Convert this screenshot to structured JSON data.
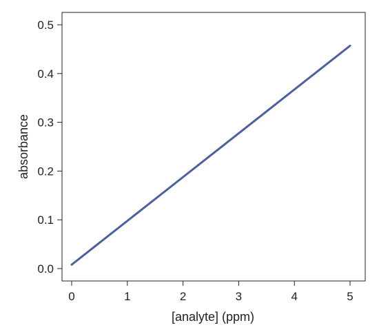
{
  "chart_data": {
    "type": "line",
    "title": "",
    "xlabel": "[analyte] (ppm)",
    "ylabel": "absorbance",
    "xlim": [
      0,
      5
    ],
    "ylim": [
      0,
      0.5
    ],
    "x_ticks": [
      0,
      1,
      2,
      3,
      4,
      5
    ],
    "x_tick_labels": [
      "0",
      "1",
      "2",
      "3",
      "4",
      "5"
    ],
    "y_ticks": [
      0.0,
      0.1,
      0.2,
      0.3,
      0.4,
      0.5
    ],
    "y_tick_labels": [
      "0.0",
      "0.1",
      "0.2",
      "0.3",
      "0.4",
      "0.5"
    ],
    "grid": false,
    "legend": "none",
    "series": [
      {
        "color": "#4c5f9e",
        "x": [
          0,
          5
        ],
        "y": [
          0.008,
          0.457
        ]
      }
    ]
  }
}
